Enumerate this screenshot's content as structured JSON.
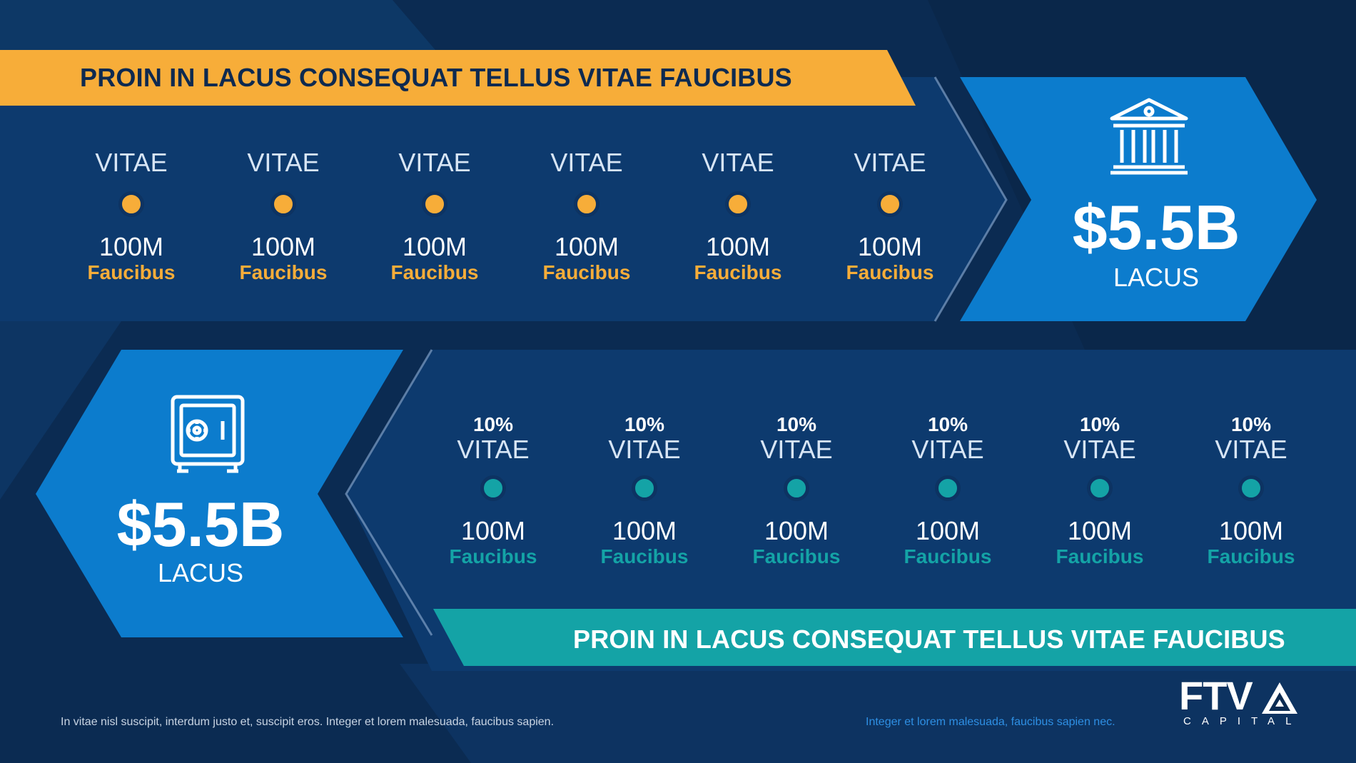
{
  "colors": {
    "background": "#0b2b52",
    "panel": "#0d3a6e",
    "accent_blue": "#0c7ccd",
    "accent_orange": "#f7ad39",
    "accent_teal": "#14a3a6"
  },
  "top": {
    "banner_title": "PROIN IN LACUS CONSEQUAT TELLUS VITAE FAUCIBUS",
    "stages": [
      {
        "label": "VITAE",
        "amount": "100M",
        "sub": "Faucibus"
      },
      {
        "label": "VITAE",
        "amount": "100M",
        "sub": "Faucibus"
      },
      {
        "label": "VITAE",
        "amount": "100M",
        "sub": "Faucibus"
      },
      {
        "label": "VITAE",
        "amount": "100M",
        "sub": "Faucibus"
      },
      {
        "label": "VITAE",
        "amount": "100M",
        "sub": "Faucibus"
      },
      {
        "label": "VITAE",
        "amount": "100M",
        "sub": "Faucibus"
      }
    ],
    "total": {
      "value": "$5.5B",
      "label": "LACUS",
      "icon": "bank-icon"
    }
  },
  "bottom": {
    "banner_title": "PROIN IN LACUS CONSEQUAT TELLUS VITAE FAUCIBUS",
    "stages": [
      {
        "percent": "10%",
        "label": "VITAE",
        "amount": "100M",
        "sub": "Faucibus"
      },
      {
        "percent": "10%",
        "label": "VITAE",
        "amount": "100M",
        "sub": "Faucibus"
      },
      {
        "percent": "10%",
        "label": "VITAE",
        "amount": "100M",
        "sub": "Faucibus"
      },
      {
        "percent": "10%",
        "label": "VITAE",
        "amount": "100M",
        "sub": "Faucibus"
      },
      {
        "percent": "10%",
        "label": "VITAE",
        "amount": "100M",
        "sub": "Faucibus"
      },
      {
        "percent": "10%",
        "label": "VITAE",
        "amount": "100M",
        "sub": "Faucibus"
      }
    ],
    "total": {
      "value": "$5.5B",
      "label": "LACUS",
      "icon": "safe-icon"
    }
  },
  "footer": {
    "left_note": "In vitae nisl suscipit, interdum justo et, suscipit eros. Integer et lorem malesuada, faucibus sapien.",
    "right_note": "Integer et lorem malesuada, faucibus sapien nec.",
    "logo_text": "FTV",
    "logo_sub": "CAPITAL"
  }
}
